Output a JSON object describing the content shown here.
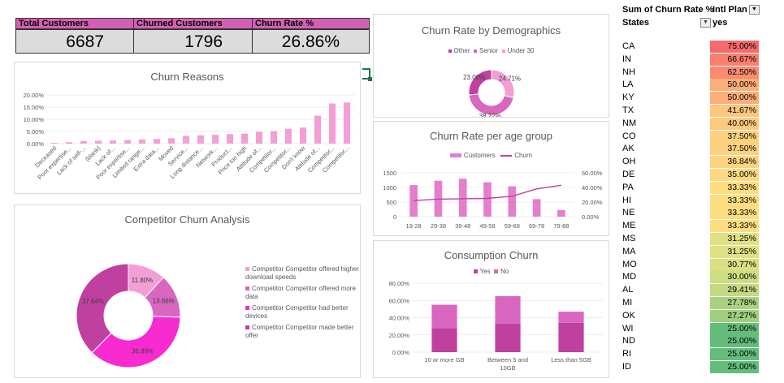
{
  "kpis": {
    "total_label": "Total Customers",
    "total_value": "6687",
    "churned_label": "Churned Customers",
    "churned_value": "1796",
    "rate_label": "Churn Rate %",
    "rate_value": "26.86%"
  },
  "colors": {
    "pink_light": "#f39fd5",
    "pink_mid": "#d966bf",
    "magenta": "#f72bd0",
    "plum": "#c0409f",
    "kpi_header": "#d460b5"
  },
  "charts": {
    "churn_reasons": {
      "title": "Churn Reasons",
      "chart_data": {
        "type": "bar",
        "title": "Churn Reasons",
        "categories": [
          "Deceased",
          "Poor expertise...",
          "Lack of self-...",
          "(blank)",
          "Lack of...",
          "Poor expertise...",
          "Limited range...",
          "Extra data...",
          "Moved",
          "Service...",
          "Long distance...",
          "Network...",
          "Product...",
          "Price too high",
          "Attitude of...",
          "Competitor...",
          "Competitor...",
          "Don't know",
          "Attitude of...",
          "Competitor...",
          "Competitor..."
        ],
        "values": [
          0.3,
          0.6,
          1.0,
          1.2,
          1.3,
          1.5,
          1.7,
          1.9,
          2.2,
          3.2,
          3.4,
          3.6,
          3.9,
          4.1,
          4.8,
          5.1,
          6.1,
          6.6,
          11.5,
          16.5,
          16.9
        ],
        "ylim": [
          0,
          20
        ],
        "yticks": [
          "0.00%",
          "5.00%",
          "10.00%",
          "15.00%",
          "20.00%"
        ]
      }
    },
    "demographics": {
      "title": "Churn Rate by Demographics",
      "legend": [
        "Other",
        "Senior",
        "Under 30"
      ],
      "chart_data": {
        "type": "pie",
        "title": "Churn Rate by Demographics",
        "labels": [
          "Other",
          "Senior",
          "Under 30"
        ],
        "values": [
          23.0,
          38.22,
          24.71
        ],
        "value_labels": [
          "23.00%",
          "38.22%",
          "24.71%"
        ]
      }
    },
    "age_group": {
      "title": "Churn Rate per age group",
      "legend": [
        "Customers",
        "Churn"
      ],
      "chart_data": {
        "type": "bar",
        "title": "Churn Rate per age group",
        "categories": [
          "19-28",
          "29-38",
          "39-48",
          "49-58",
          "59-68",
          "69-78",
          "79-88"
        ],
        "series": [
          {
            "name": "Customers",
            "values": [
              1080,
              1230,
              1300,
              1180,
              1040,
              600,
              230
            ]
          },
          {
            "name": "Churn",
            "values": [
              22.0,
              24.0,
              24.5,
              25.0,
              28.0,
              38.0,
              43.0
            ]
          }
        ],
        "ylim": [
          0,
          1500
        ],
        "y2lim": [
          0,
          60
        ],
        "yticks": [
          "0",
          "500",
          "1000",
          "1500"
        ],
        "y2ticks": [
          "0.00%",
          "20.00%",
          "40.00%",
          "60.00%"
        ]
      }
    },
    "competitor": {
      "title": "Competitor Churn Analysis",
      "chart_data": {
        "type": "pie",
        "title": "Competitor Churn Analysis",
        "labels": [
          "Competitor Competitor offered higher download speeds",
          "Competitor Competitor offered more data",
          "Competitor Competitor had better devices",
          "Competitor Competitor made better offer"
        ],
        "values": [
          11.8,
          13.66,
          36.89,
          37.64
        ],
        "value_labels": [
          "11.80%",
          "13.66%",
          "36.89%",
          "37.64%"
        ]
      }
    },
    "consumption": {
      "title": "Consumption Churn",
      "legend": [
        "Yes",
        "No"
      ],
      "chart_data": {
        "type": "bar",
        "title": "Consumption Churn",
        "categories": [
          "10 or more GB",
          "Between 5 and 10GB",
          "Less than 5GB"
        ],
        "series": [
          {
            "name": "Yes",
            "values": [
              28,
              33,
              34
            ]
          },
          {
            "name": "No",
            "values": [
              27,
              32,
              13
            ]
          }
        ],
        "ylim": [
          0,
          80
        ],
        "yticks": [
          "0.00%",
          "20.00%",
          "40.00%",
          "60.00%",
          "80.00%"
        ]
      }
    }
  },
  "pivot": {
    "value_header": "Sum of Churn Rate %",
    "col_field": "Intl Plan",
    "row_field": "States",
    "col_value": "yes",
    "rows": [
      {
        "state": "CA",
        "value": "75.00%",
        "color": "#f8696b"
      },
      {
        "state": "IN",
        "value": "66.67%",
        "color": "#f97f6f"
      },
      {
        "state": "NH",
        "value": "62.50%",
        "color": "#fa8b71"
      },
      {
        "state": "LA",
        "value": "50.00%",
        "color": "#fcae78"
      },
      {
        "state": "KY",
        "value": "50.00%",
        "color": "#fcae78"
      },
      {
        "state": "TX",
        "value": "41.67%",
        "color": "#fec57c"
      },
      {
        "state": "NM",
        "value": "40.00%",
        "color": "#fec97d"
      },
      {
        "state": "CO",
        "value": "37.50%",
        "color": "#fed17f"
      },
      {
        "state": "AK",
        "value": "37.50%",
        "color": "#fed17f"
      },
      {
        "state": "OH",
        "value": "36.84%",
        "color": "#fed380"
      },
      {
        "state": "DE",
        "value": "35.00%",
        "color": "#fed880"
      },
      {
        "state": "PA",
        "value": "33.33%",
        "color": "#fedd81"
      },
      {
        "state": "HI",
        "value": "33.33%",
        "color": "#fedd81"
      },
      {
        "state": "NE",
        "value": "33.33%",
        "color": "#fedd81"
      },
      {
        "state": "ME",
        "value": "33.33%",
        "color": "#fedd81"
      },
      {
        "state": "MS",
        "value": "31.25%",
        "color": "#dfe283"
      },
      {
        "state": "MA",
        "value": "31.25%",
        "color": "#dfe283"
      },
      {
        "state": "MO",
        "value": "30.77%",
        "color": "#d8e082"
      },
      {
        "state": "MD",
        "value": "30.00%",
        "color": "#cddd82"
      },
      {
        "state": "AL",
        "value": "29.41%",
        "color": "#c3da81"
      },
      {
        "state": "MI",
        "value": "27.78%",
        "color": "#a9d27f"
      },
      {
        "state": "OK",
        "value": "27.27%",
        "color": "#a0cf7e"
      },
      {
        "state": "WI",
        "value": "25.00%",
        "color": "#63be7b"
      },
      {
        "state": "ND",
        "value": "25.00%",
        "color": "#63be7b"
      },
      {
        "state": "RI",
        "value": "25.00%",
        "color": "#63be7b"
      },
      {
        "state": "ID",
        "value": "25.00%",
        "color": "#63be7b"
      }
    ]
  }
}
